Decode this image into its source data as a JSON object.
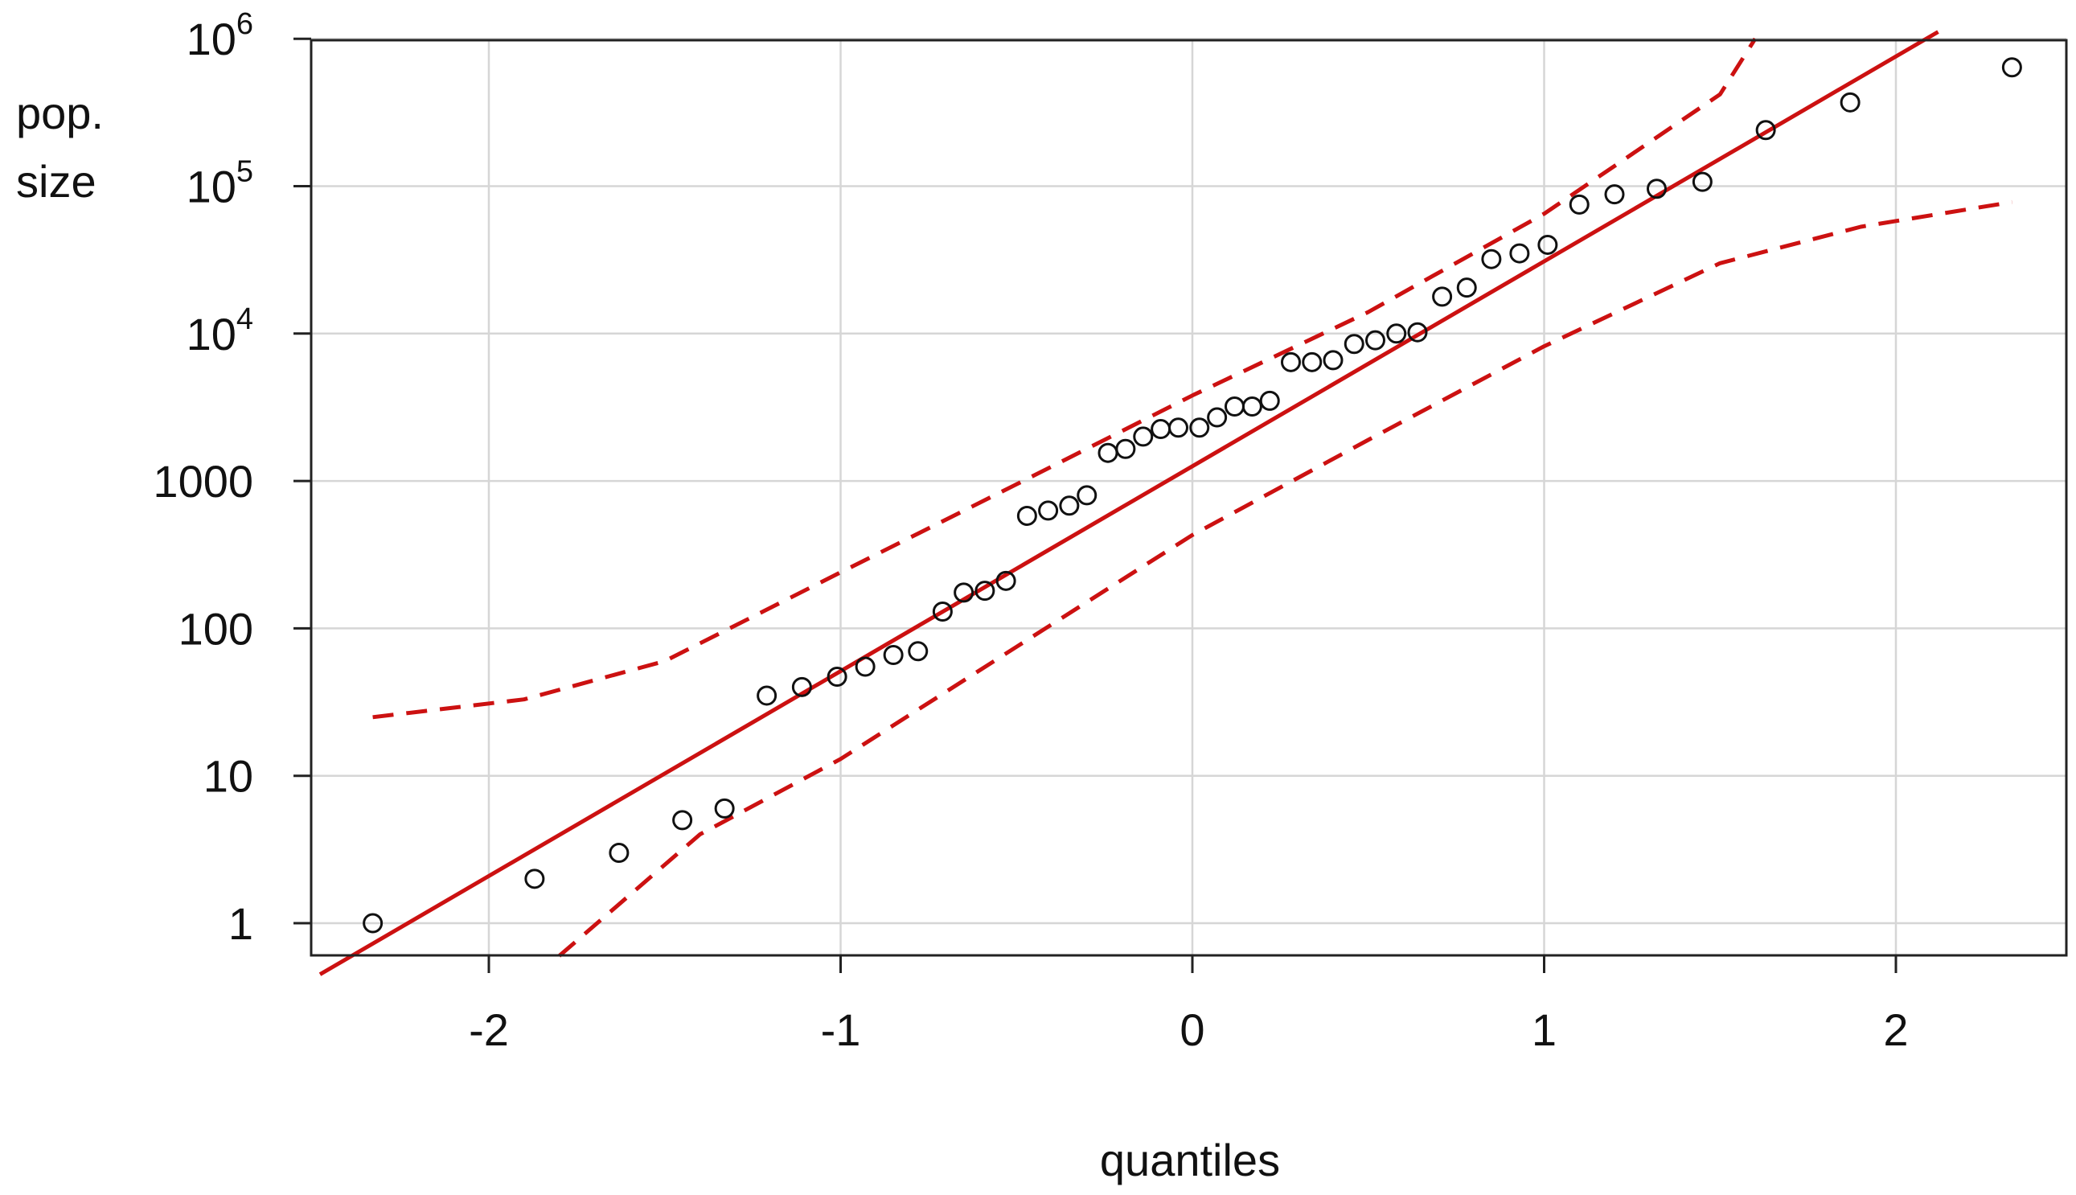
{
  "chart_data": {
    "type": "scatter",
    "title": "",
    "xlabel": "quantiles",
    "ylabel_lines": [
      "pop.",
      "size"
    ],
    "xlim": [
      -2.5,
      2.5
    ],
    "ylim_log10": [
      -0.22,
      6.0
    ],
    "y_scale": "log",
    "grid": true,
    "x_ticks": [
      {
        "value": -2,
        "label": "-2"
      },
      {
        "value": -1,
        "label": "-1"
      },
      {
        "value": 0,
        "label": "0"
      },
      {
        "value": 1,
        "label": "1"
      },
      {
        "value": 2,
        "label": "2"
      }
    ],
    "y_ticks": [
      {
        "value": 1,
        "label": "1"
      },
      {
        "value": 10,
        "label": "10"
      },
      {
        "value": 100,
        "label": "100"
      },
      {
        "value": 1000,
        "label": "1000"
      },
      {
        "value": 10000,
        "label": "10",
        "exponent": "4"
      },
      {
        "value": 100000,
        "label": "10",
        "exponent": "5"
      },
      {
        "value": 1000000,
        "label": "10",
        "exponent": "6"
      }
    ],
    "points": [
      {
        "x": -2.33,
        "y": 1
      },
      {
        "x": -1.87,
        "y": 2
      },
      {
        "x": -1.63,
        "y": 3
      },
      {
        "x": -1.45,
        "y": 5
      },
      {
        "x": -1.33,
        "y": 6
      },
      {
        "x": -1.21,
        "y": 35
      },
      {
        "x": -1.11,
        "y": 40
      },
      {
        "x": -1.01,
        "y": 47
      },
      {
        "x": -0.93,
        "y": 55
      },
      {
        "x": -0.85,
        "y": 66
      },
      {
        "x": -0.78,
        "y": 70
      },
      {
        "x": -0.71,
        "y": 130
      },
      {
        "x": -0.65,
        "y": 175
      },
      {
        "x": -0.59,
        "y": 180
      },
      {
        "x": -0.53,
        "y": 210
      },
      {
        "x": -0.47,
        "y": 580
      },
      {
        "x": -0.41,
        "y": 630
      },
      {
        "x": -0.35,
        "y": 680
      },
      {
        "x": -0.3,
        "y": 800
      },
      {
        "x": -0.24,
        "y": 1550
      },
      {
        "x": -0.19,
        "y": 1650
      },
      {
        "x": -0.14,
        "y": 2000
      },
      {
        "x": -0.09,
        "y": 2250
      },
      {
        "x": -0.04,
        "y": 2300
      },
      {
        "x": 0.02,
        "y": 2300
      },
      {
        "x": 0.07,
        "y": 2700
      },
      {
        "x": 0.12,
        "y": 3200
      },
      {
        "x": 0.17,
        "y": 3200
      },
      {
        "x": 0.22,
        "y": 3500
      },
      {
        "x": 0.28,
        "y": 6400
      },
      {
        "x": 0.34,
        "y": 6400
      },
      {
        "x": 0.4,
        "y": 6600
      },
      {
        "x": 0.46,
        "y": 8500
      },
      {
        "x": 0.52,
        "y": 9000
      },
      {
        "x": 0.58,
        "y": 10000
      },
      {
        "x": 0.64,
        "y": 10200
      },
      {
        "x": 0.71,
        "y": 17800
      },
      {
        "x": 0.78,
        "y": 20500
      },
      {
        "x": 0.85,
        "y": 32000
      },
      {
        "x": 0.93,
        "y": 35000
      },
      {
        "x": 1.01,
        "y": 40000
      },
      {
        "x": 1.1,
        "y": 75000
      },
      {
        "x": 1.2,
        "y": 88000
      },
      {
        "x": 1.32,
        "y": 96000
      },
      {
        "x": 1.45,
        "y": 107000
      },
      {
        "x": 1.63,
        "y": 240000
      },
      {
        "x": 1.87,
        "y": 370000
      },
      {
        "x": 2.33,
        "y": 640000
      }
    ],
    "reference_line": {
      "intercept_log10": 3.1,
      "slope_log10_per_quantile": 1.39,
      "color": "#cc1111"
    },
    "confidence_band": {
      "color": "#cc1111",
      "upper": [
        {
          "x": -2.33,
          "y": 25
        },
        {
          "x": -1.9,
          "y": 33
        },
        {
          "x": -1.5,
          "y": 60
        },
        {
          "x": -1.0,
          "y": 240
        },
        {
          "x": -0.5,
          "y": 950
        },
        {
          "x": 0.0,
          "y": 3800
        },
        {
          "x": 0.5,
          "y": 14000
        },
        {
          "x": 1.0,
          "y": 65000
        },
        {
          "x": 1.5,
          "y": 420000
        },
        {
          "x": 1.6,
          "y": 1000000
        }
      ],
      "lower": [
        {
          "x": -1.8,
          "y": 0.6
        },
        {
          "x": -1.4,
          "y": 4
        },
        {
          "x": -1.0,
          "y": 13
        },
        {
          "x": -0.5,
          "y": 75
        },
        {
          "x": 0.0,
          "y": 430
        },
        {
          "x": 0.5,
          "y": 1900
        },
        {
          "x": 1.0,
          "y": 8200
        },
        {
          "x": 1.5,
          "y": 30000
        },
        {
          "x": 1.9,
          "y": 53000
        },
        {
          "x": 2.33,
          "y": 78000
        }
      ]
    }
  }
}
